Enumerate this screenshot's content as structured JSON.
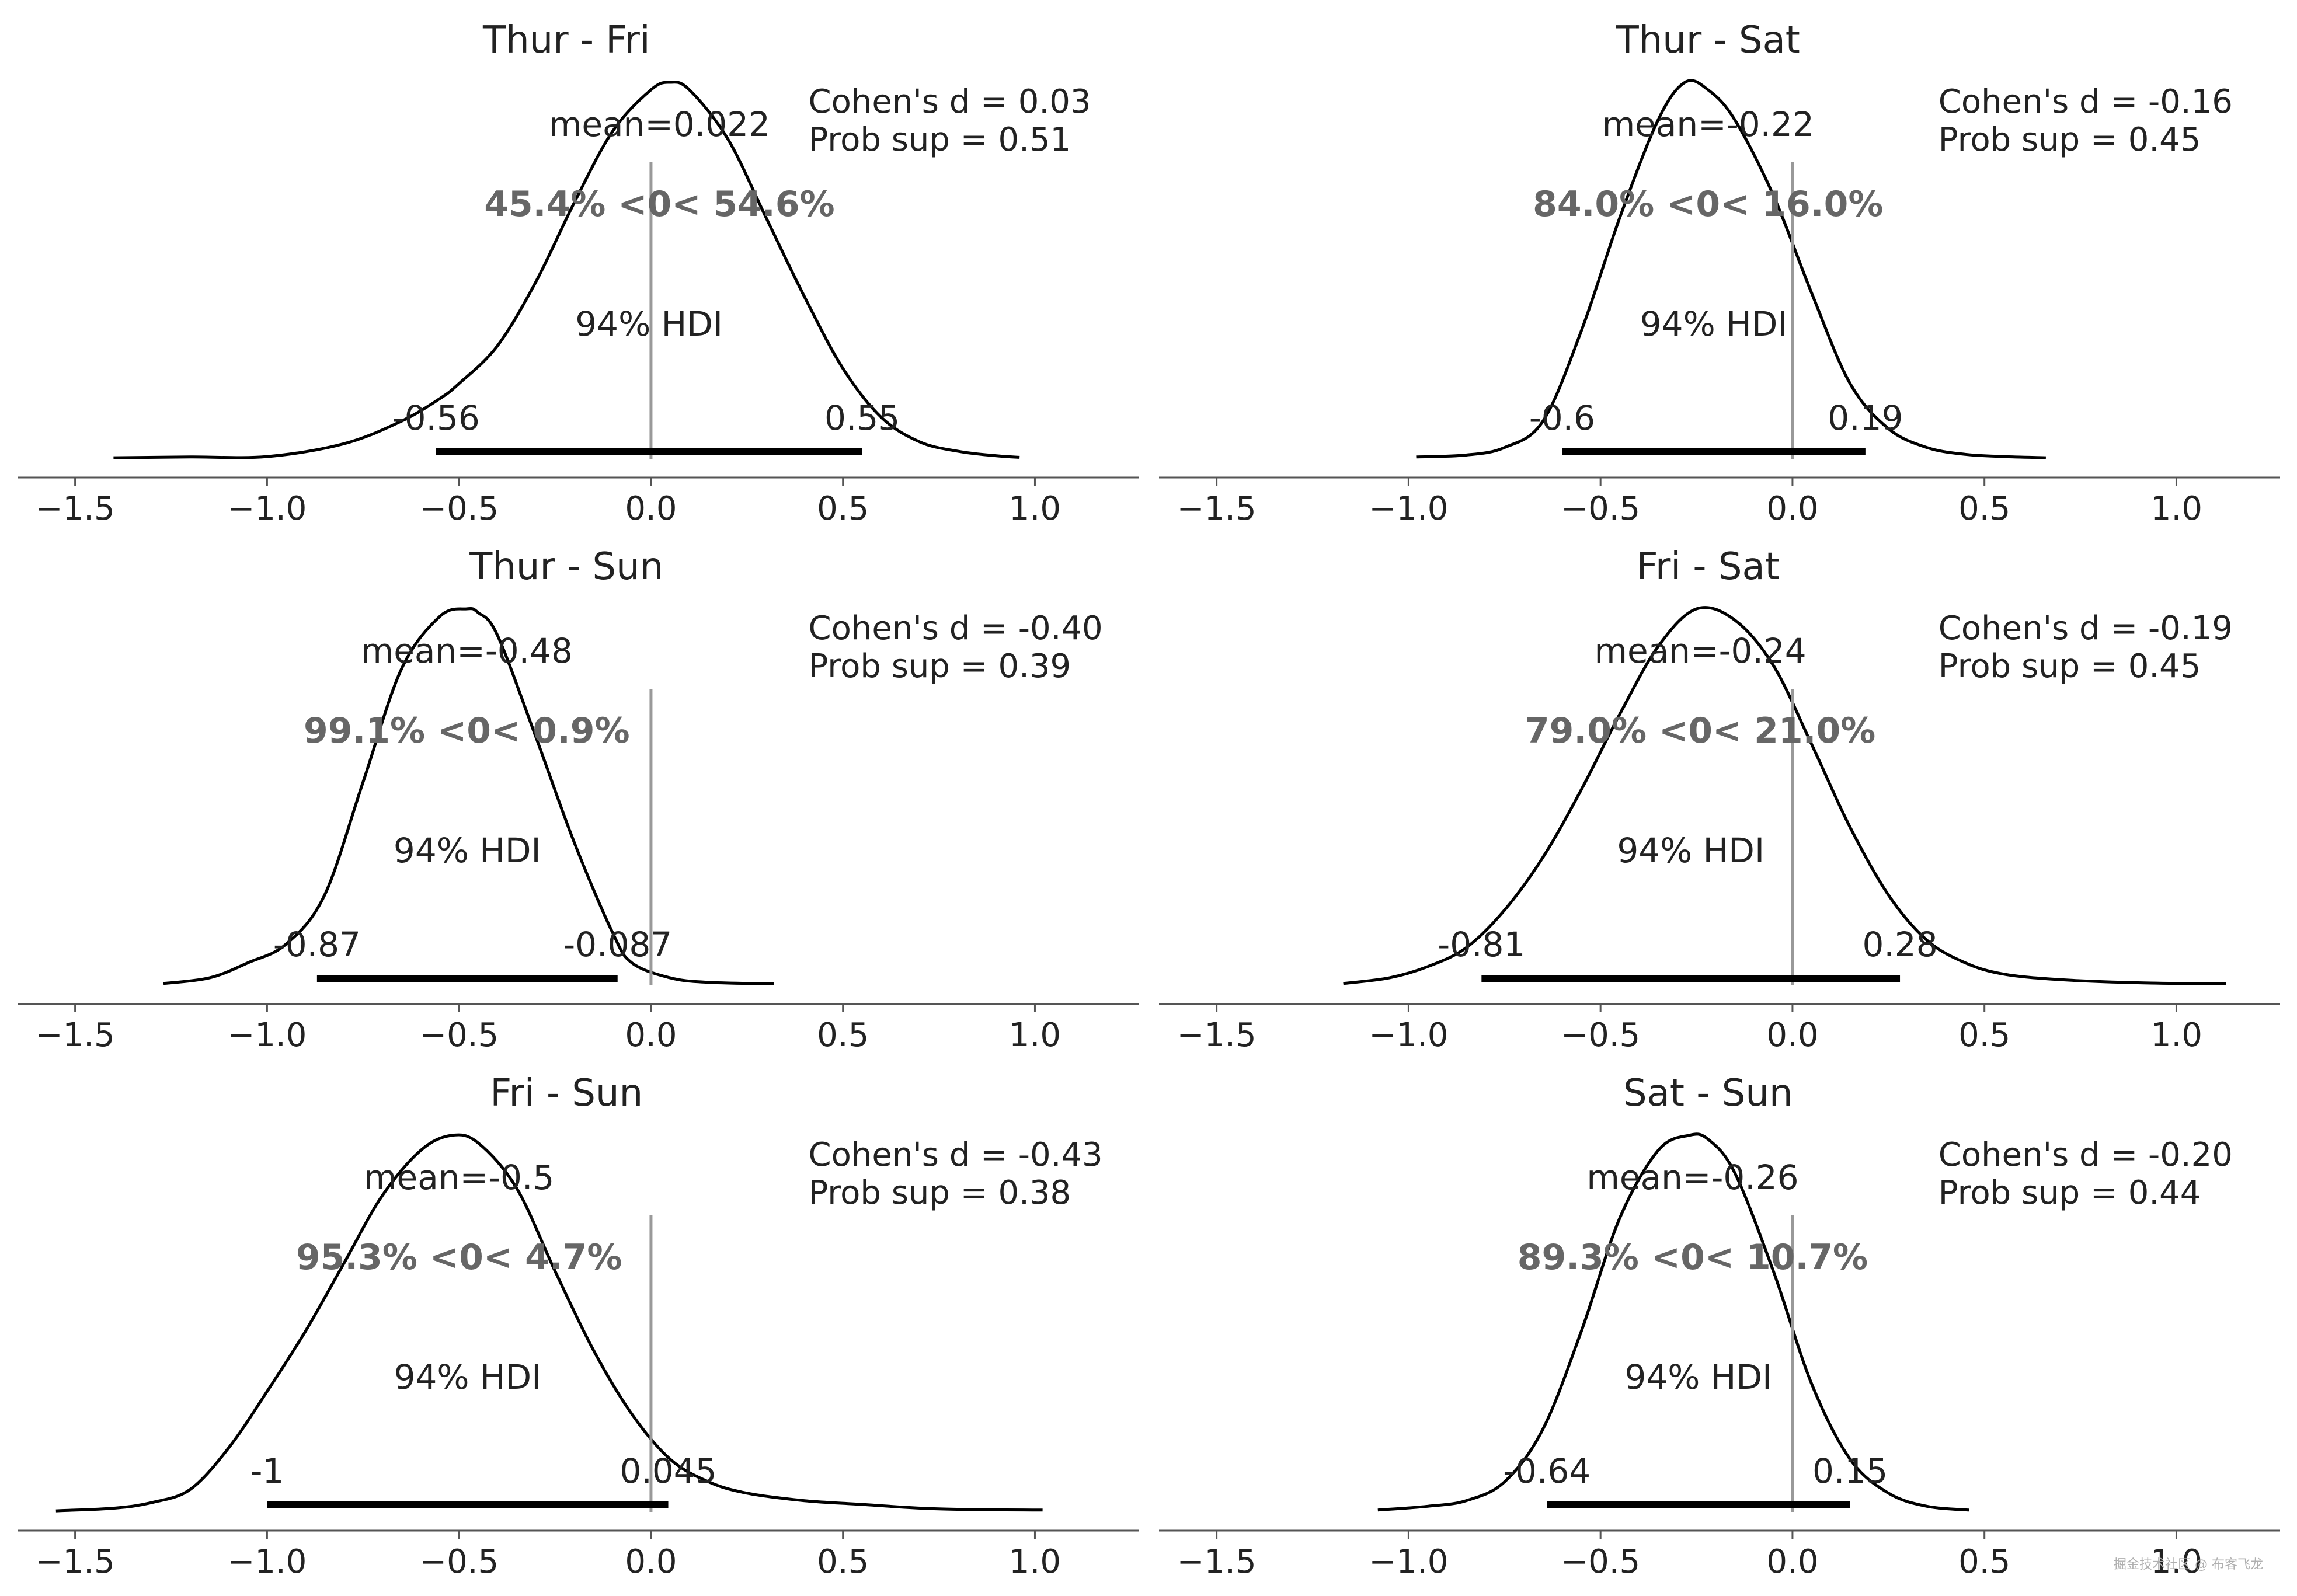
{
  "watermark": "掘金技术社区 @ 布客飞龙",
  "chart_data": [
    {
      "type": "posterior_density",
      "title": "Thur - Fri",
      "x_ticks": [
        -1.5,
        -1.0,
        -0.5,
        0.0,
        0.5,
        1.0
      ],
      "x_tick_labels": [
        "−1.5",
        "−1.0",
        "−0.5",
        "0.0",
        "0.5",
        "1.0"
      ],
      "xlim": [
        -1.65,
        1.27
      ],
      "mean": 0.022,
      "mean_label": "mean=0.022",
      "ref_val": 0,
      "ref_label": "45.4% <0< 54.6%",
      "hdi_label": "94% HDI",
      "hdi": [
        -0.56,
        0.55
      ],
      "hdi_labels": [
        "-0.56",
        "0.55"
      ],
      "cohens_d": "Cohen's d = 0.03",
      "prob_sup": "Prob sup = 0.51",
      "density": {
        "x": [
          -1.4,
          -1.2,
          -1.0,
          -0.8,
          -0.65,
          -0.55,
          -0.5,
          -0.4,
          -0.3,
          -0.2,
          -0.1,
          0.0,
          0.05,
          0.1,
          0.2,
          0.3,
          0.4,
          0.5,
          0.6,
          0.7,
          0.8,
          0.9,
          0.96
        ],
        "y": [
          0.003,
          0.005,
          0.006,
          0.04,
          0.1,
          0.16,
          0.2,
          0.3,
          0.47,
          0.68,
          0.87,
          0.98,
          1.0,
          0.98,
          0.85,
          0.64,
          0.43,
          0.24,
          0.11,
          0.045,
          0.02,
          0.008,
          0.004
        ]
      }
    },
    {
      "type": "posterior_density",
      "title": "Thur - Sat",
      "x_ticks": [
        -1.5,
        -1.0,
        -0.5,
        0.0,
        0.5,
        1.0
      ],
      "x_tick_labels": [
        "−1.5",
        "−1.0",
        "−0.5",
        "0.0",
        "0.5",
        "1.0"
      ],
      "xlim": [
        -1.65,
        1.27
      ],
      "mean": -0.22,
      "mean_label": "mean=-0.22",
      "ref_val": 0,
      "ref_label": "84.0% <0< 16.0%",
      "hdi_label": "94% HDI",
      "hdi": [
        -0.6,
        0.19
      ],
      "hdi_labels": [
        "-0.6",
        "0.19"
      ],
      "cohens_d": "Cohen's d = -0.16",
      "prob_sup": "Prob sup = 0.45",
      "density": {
        "x": [
          -0.98,
          -0.85,
          -0.75,
          -0.65,
          -0.55,
          -0.45,
          -0.35,
          -0.28,
          -0.22,
          -0.15,
          -0.05,
          0.05,
          0.15,
          0.25,
          0.35,
          0.45,
          0.55,
          0.66
        ],
        "y": [
          0.005,
          0.01,
          0.03,
          0.1,
          0.34,
          0.64,
          0.9,
          1.0,
          0.98,
          0.9,
          0.7,
          0.44,
          0.2,
          0.08,
          0.03,
          0.012,
          0.006,
          0.003
        ]
      }
    },
    {
      "type": "posterior_density",
      "title": "Thur - Sun",
      "x_ticks": [
        -1.5,
        -1.0,
        -0.5,
        0.0,
        0.5,
        1.0
      ],
      "x_tick_labels": [
        "−1.5",
        "−1.0",
        "−0.5",
        "0.0",
        "0.5",
        "1.0"
      ],
      "xlim": [
        -1.65,
        1.27
      ],
      "mean": -0.48,
      "mean_label": "mean=-0.48",
      "ref_val": 0,
      "ref_label": "99.1% <0< 0.9%",
      "hdi_label": "94% HDI",
      "hdi": [
        -0.87,
        -0.087
      ],
      "hdi_labels": [
        "-0.87",
        "-0.087"
      ],
      "cohens_d": "Cohen's d = -0.40",
      "prob_sup": "Prob sup = 0.39",
      "density": {
        "x": [
          -1.27,
          -1.15,
          -1.05,
          -0.95,
          -0.85,
          -0.75,
          -0.65,
          -0.55,
          -0.48,
          -0.45,
          -0.4,
          -0.3,
          -0.2,
          -0.1,
          -0.05,
          0.05,
          0.15,
          0.32
        ],
        "y": [
          0.005,
          0.02,
          0.06,
          0.11,
          0.24,
          0.54,
          0.84,
          0.98,
          1.0,
          0.99,
          0.93,
          0.66,
          0.38,
          0.14,
          0.06,
          0.02,
          0.008,
          0.004
        ]
      }
    },
    {
      "type": "posterior_density",
      "title": "Fri - Sat",
      "x_ticks": [
        -1.5,
        -1.0,
        -0.5,
        0.0,
        0.5,
        1.0
      ],
      "x_tick_labels": [
        "−1.5",
        "−1.0",
        "−0.5",
        "0.0",
        "0.5",
        "1.0"
      ],
      "xlim": [
        -1.65,
        1.27
      ],
      "mean": -0.24,
      "mean_label": "mean=-0.24",
      "ref_val": 0,
      "ref_label": "79.0% <0< 21.0%",
      "hdi_label": "94% HDI",
      "hdi": [
        -0.81,
        0.28
      ],
      "hdi_labels": [
        "-0.81",
        "0.28"
      ],
      "cohens_d": "Cohen's d = -0.19",
      "prob_sup": "Prob sup = 0.45",
      "density": {
        "x": [
          -1.17,
          -1.05,
          -0.95,
          -0.85,
          -0.75,
          -0.65,
          -0.55,
          -0.45,
          -0.35,
          -0.25,
          -0.15,
          -0.05,
          0.05,
          0.15,
          0.25,
          0.35,
          0.45,
          0.55,
          0.7,
          0.9,
          1.13
        ],
        "y": [
          0.005,
          0.02,
          0.05,
          0.1,
          0.2,
          0.34,
          0.52,
          0.72,
          0.9,
          1.0,
          0.97,
          0.85,
          0.64,
          0.42,
          0.24,
          0.12,
          0.06,
          0.03,
          0.015,
          0.007,
          0.004
        ]
      }
    },
    {
      "type": "posterior_density",
      "title": "Fri - Sun",
      "x_ticks": [
        -1.5,
        -1.0,
        -0.5,
        0.0,
        0.5,
        1.0
      ],
      "x_tick_labels": [
        "−1.5",
        "−1.0",
        "−0.5",
        "0.0",
        "0.5",
        "1.0"
      ],
      "xlim": [
        -1.65,
        1.27
      ],
      "mean": -0.5,
      "mean_label": "mean=-0.5",
      "ref_val": 0,
      "ref_label": "95.3% <0< 4.7%",
      "hdi_label": "94% HDI",
      "hdi": [
        -1,
        0.045
      ],
      "hdi_labels": [
        "-1",
        "0.045"
      ],
      "cohens_d": "Cohen's d = -0.43",
      "prob_sup": "Prob sup = 0.38",
      "density": {
        "x": [
          -1.55,
          -1.4,
          -1.3,
          -1.2,
          -1.1,
          -1.0,
          -0.9,
          -0.8,
          -0.7,
          -0.6,
          -0.52,
          -0.45,
          -0.35,
          -0.25,
          -0.15,
          -0.05,
          0.05,
          0.15,
          0.25,
          0.4,
          0.55,
          0.75,
          1.02
        ],
        "y": [
          0.003,
          0.01,
          0.025,
          0.06,
          0.17,
          0.32,
          0.48,
          0.66,
          0.84,
          0.96,
          1.0,
          0.98,
          0.86,
          0.64,
          0.43,
          0.26,
          0.14,
          0.08,
          0.05,
          0.03,
          0.02,
          0.008,
          0.005
        ]
      }
    },
    {
      "type": "posterior_density",
      "title": "Sat - Sun",
      "x_ticks": [
        -1.5,
        -1.0,
        -0.5,
        0.0,
        0.5,
        1.0
      ],
      "x_tick_labels": [
        "−1.5",
        "−1.0",
        "−0.5",
        "0.0",
        "0.5",
        "1.0"
      ],
      "xlim": [
        -1.65,
        1.27
      ],
      "mean": -0.26,
      "mean_label": "mean=-0.26",
      "ref_val": 0,
      "ref_label": "89.3% <0< 10.7%",
      "hdi_label": "94% HDI",
      "hdi": [
        -0.64,
        0.15
      ],
      "hdi_labels": [
        "-0.64",
        "0.15"
      ],
      "cohens_d": "Cohen's d = -0.20",
      "prob_sup": "Prob sup = 0.44",
      "density": {
        "x": [
          -1.08,
          -0.95,
          -0.85,
          -0.75,
          -0.65,
          -0.55,
          -0.45,
          -0.35,
          -0.27,
          -0.22,
          -0.15,
          -0.05,
          0.05,
          0.15,
          0.25,
          0.35,
          0.46
        ],
        "y": [
          0.005,
          0.015,
          0.03,
          0.08,
          0.22,
          0.48,
          0.78,
          0.96,
          1.0,
          0.99,
          0.9,
          0.64,
          0.34,
          0.14,
          0.05,
          0.015,
          0.005
        ]
      }
    }
  ]
}
